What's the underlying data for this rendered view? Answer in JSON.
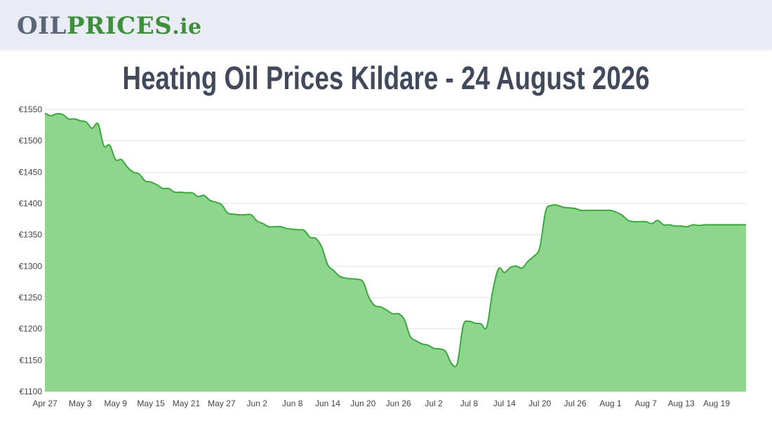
{
  "header": {
    "logo": {
      "part1": "OIL",
      "part2": "PRICES",
      "part3": ".ie"
    }
  },
  "page": {
    "title": "Heating Oil Prices Kildare - 24 August 2026"
  },
  "chart_data": {
    "type": "area",
    "title": "Heating Oil Prices Kildare - 24 August 2026",
    "xlabel": "",
    "ylabel": "",
    "ylim": [
      1100,
      1550
    ],
    "yticks": [
      1100,
      1150,
      1200,
      1250,
      1300,
      1350,
      1400,
      1450,
      1500,
      1550
    ],
    "ytick_labels": [
      "€1100",
      "€1150",
      "€1200",
      "€1250",
      "€1300",
      "€1350",
      "€1400",
      "€1450",
      "€1500",
      "€1550"
    ],
    "xticks": [
      "Apr 27",
      "May 3",
      "May 9",
      "May 15",
      "May 21",
      "May 27",
      "Jun 2",
      "Jun 8",
      "Jun 14",
      "Jun 20",
      "Jun 26",
      "Jul 2",
      "Jul 8",
      "Jul 14",
      "Jul 20",
      "Jul 26",
      "Aug 1",
      "Aug 7",
      "Aug 13",
      "Aug 19"
    ],
    "grid": true,
    "colors": {
      "line": "#3aa83a",
      "fill": "#8ed68e",
      "grid": "#e2e2e2"
    },
    "series": [
      {
        "x": [
          "Apr 27",
          "Apr 28",
          "Apr 29",
          "Apr 30",
          "May 1",
          "May 2",
          "May 3",
          "May 4",
          "May 5",
          "May 6",
          "May 7",
          "May 8",
          "May 9",
          "May 10",
          "May 11",
          "May 12",
          "May 13",
          "May 14",
          "May 15",
          "May 16",
          "May 17",
          "May 18",
          "May 19",
          "May 20",
          "May 21",
          "May 22",
          "May 23",
          "May 24",
          "May 25",
          "May 26",
          "May 27",
          "May 28",
          "May 29",
          "May 30",
          "May 31",
          "Jun 1",
          "Jun 2",
          "Jun 3",
          "Jun 4",
          "Jun 5",
          "Jun 6",
          "Jun 7",
          "Jun 8",
          "Jun 9",
          "Jun 10",
          "Jun 11",
          "Jun 12",
          "Jun 13",
          "Jun 14",
          "Jun 15",
          "Jun 16",
          "Jun 17",
          "Jun 18",
          "Jun 19",
          "Jun 20",
          "Jun 21",
          "Jun 22",
          "Jun 23",
          "Jun 24",
          "Jun 25",
          "Jun 26",
          "Jun 27",
          "Jun 28",
          "Jun 29",
          "Jun 30",
          "Jul 1",
          "Jul 2",
          "Jul 3",
          "Jul 4",
          "Jul 5",
          "Jul 6",
          "Jul 7",
          "Jul 8",
          "Jul 9",
          "Jul 10",
          "Jul 11",
          "Jul 12",
          "Jul 13",
          "Jul 14",
          "Jul 15",
          "Jul 16",
          "Jul 17",
          "Jul 18",
          "Jul 19",
          "Jul 20",
          "Jul 21",
          "Jul 22",
          "Jul 23",
          "Jul 24",
          "Jul 25",
          "Jul 26",
          "Jul 27",
          "Jul 28",
          "Jul 29",
          "Jul 30",
          "Jul 31",
          "Aug 1",
          "Aug 2",
          "Aug 3",
          "Aug 4",
          "Aug 5",
          "Aug 6",
          "Aug 7",
          "Aug 8",
          "Aug 9",
          "Aug 10",
          "Aug 11",
          "Aug 12",
          "Aug 13",
          "Aug 14",
          "Aug 15",
          "Aug 16",
          "Aug 17",
          "Aug 18",
          "Aug 19",
          "Aug 20",
          "Aug 21",
          "Aug 22",
          "Aug 23",
          "Aug 24"
        ],
        "values": [
          1544,
          1540,
          1543,
          1542,
          1535,
          1535,
          1532,
          1530,
          1520,
          1527,
          1492,
          1493,
          1470,
          1470,
          1458,
          1450,
          1447,
          1436,
          1434,
          1430,
          1424,
          1424,
          1418,
          1418,
          1417,
          1417,
          1411,
          1413,
          1405,
          1402,
          1398,
          1385,
          1383,
          1382,
          1382,
          1382,
          1372,
          1368,
          1363,
          1363,
          1363,
          1360,
          1359,
          1358,
          1357,
          1346,
          1344,
          1330,
          1302,
          1293,
          1284,
          1281,
          1280,
          1279,
          1275,
          1250,
          1237,
          1235,
          1230,
          1224,
          1224,
          1215,
          1188,
          1181,
          1176,
          1174,
          1169,
          1168,
          1164,
          1145,
          1145,
          1205,
          1212,
          1209,
          1208,
          1203,
          1260,
          1296,
          1290,
          1298,
          1300,
          1297,
          1308,
          1316,
          1330,
          1388,
          1397,
          1397,
          1394,
          1393,
          1392,
          1389,
          1389,
          1389,
          1389,
          1389,
          1389,
          1386,
          1381,
          1373,
          1371,
          1371,
          1371,
          1368,
          1373,
          1366,
          1366,
          1364,
          1364,
          1363,
          1366,
          1365,
          1366,
          1366,
          1366,
          1366,
          1366,
          1366,
          1366,
          1366
        ]
      }
    ]
  }
}
